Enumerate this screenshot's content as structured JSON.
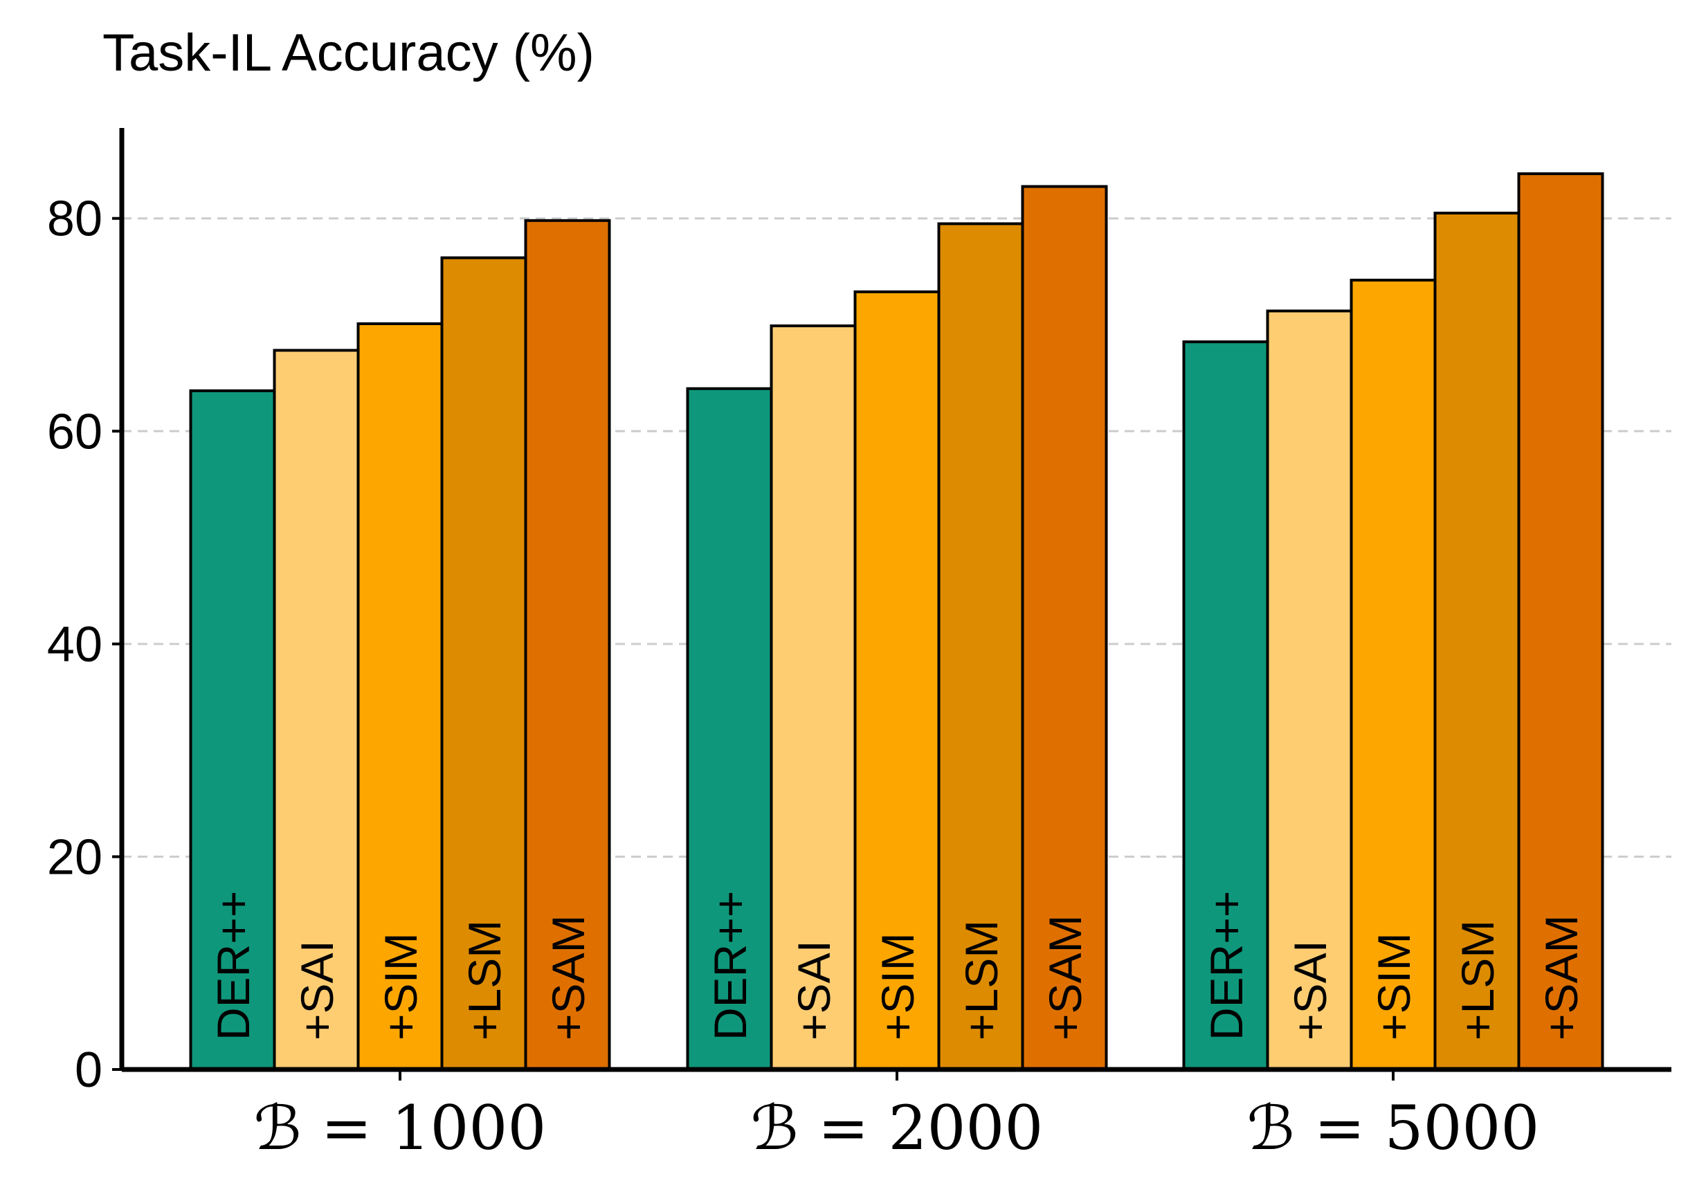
{
  "chart_data": {
    "type": "bar",
    "title": "Task-IL Accuracy (%)",
    "xlabel": "",
    "ylabel": "",
    "categories": [
      "ℬ = 1000",
      "ℬ = 2000",
      "ℬ = 5000"
    ],
    "series": [
      {
        "name": "DER++",
        "color": "#0f977b",
        "values": [
          63.8,
          64.0,
          68.4
        ]
      },
      {
        "name": "+SAI",
        "color": "#fecd72",
        "values": [
          67.6,
          69.9,
          71.3
        ]
      },
      {
        "name": "+SIM",
        "color": "#fda600",
        "values": [
          70.1,
          73.1,
          74.2
        ]
      },
      {
        "name": "+LSM",
        "color": "#dd8b00",
        "values": [
          76.3,
          79.5,
          80.5
        ]
      },
      {
        "name": "+SAM",
        "color": "#df7000",
        "values": [
          79.8,
          83.0,
          84.2
        ]
      }
    ],
    "yticks": [
      0,
      20,
      40,
      60,
      80
    ],
    "ylim": [
      0,
      88.5
    ],
    "grid": "horizontal dashed",
    "bar_labels": "series name written vertically inside each bar"
  }
}
